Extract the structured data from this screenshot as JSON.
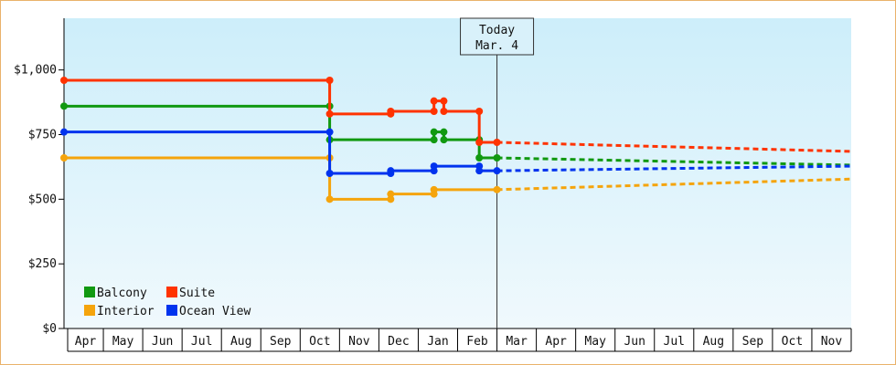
{
  "chart_data": {
    "type": "line",
    "title": "",
    "xlabel": "",
    "ylabel": "",
    "ylim": [
      0,
      1200
    ],
    "y_ticks": [
      {
        "value": 0,
        "label": "$0"
      },
      {
        "value": 250,
        "label": "$250"
      },
      {
        "value": 500,
        "label": "$500"
      },
      {
        "value": 750,
        "label": "$750"
      },
      {
        "value": 1000,
        "label": "$1,000"
      }
    ],
    "x_start": 0,
    "x_end": 20,
    "x_months": [
      "Apr",
      "May",
      "Jun",
      "Jul",
      "Aug",
      "Sep",
      "Oct",
      "Nov",
      "Dec",
      "Jan",
      "Feb",
      "Mar",
      "Apr",
      "May",
      "Jun",
      "Jul",
      "Aug",
      "Sep",
      "Oct",
      "Nov"
    ],
    "today": {
      "x": 11,
      "line1": "Today",
      "line2": "Mar. 4"
    },
    "legend_position": "bottom-left",
    "background": {
      "top": "#cdeefa",
      "bottom": "#f0f9fd"
    },
    "series": [
      {
        "name": "Balcony",
        "color": "#119911",
        "points": [
          [
            0,
            860
          ],
          [
            6.75,
            860
          ],
          [
            6.75,
            730
          ],
          [
            9.4,
            730
          ],
          [
            9.4,
            760
          ],
          [
            9.65,
            760
          ],
          [
            9.65,
            730
          ],
          [
            10.55,
            730
          ],
          [
            10.55,
            660
          ],
          [
            11,
            660
          ]
        ],
        "forecast": [
          [
            11,
            660
          ],
          [
            20,
            632
          ]
        ]
      },
      {
        "name": "Suite",
        "color": "#ff3300",
        "points": [
          [
            0,
            960
          ],
          [
            6.75,
            960
          ],
          [
            6.75,
            830
          ],
          [
            8.3,
            830
          ],
          [
            8.3,
            840
          ],
          [
            9.4,
            840
          ],
          [
            9.4,
            880
          ],
          [
            9.65,
            880
          ],
          [
            9.65,
            840
          ],
          [
            10.55,
            840
          ],
          [
            10.55,
            720
          ],
          [
            11,
            720
          ]
        ],
        "forecast": [
          [
            11,
            720
          ],
          [
            20,
            685
          ]
        ]
      },
      {
        "name": "Interior",
        "color": "#f5a40c",
        "points": [
          [
            0,
            660
          ],
          [
            6.75,
            660
          ],
          [
            6.75,
            500
          ],
          [
            8.3,
            500
          ],
          [
            8.3,
            520
          ],
          [
            9.4,
            520
          ],
          [
            9.4,
            537
          ],
          [
            11,
            537
          ]
        ],
        "forecast": [
          [
            11,
            537
          ],
          [
            20,
            578
          ]
        ]
      },
      {
        "name": "Ocean View",
        "color": "#0033ee",
        "points": [
          [
            0,
            760
          ],
          [
            6.75,
            760
          ],
          [
            6.75,
            600
          ],
          [
            8.3,
            600
          ],
          [
            8.3,
            610
          ],
          [
            9.4,
            610
          ],
          [
            9.4,
            628
          ],
          [
            10.55,
            628
          ],
          [
            10.55,
            610
          ],
          [
            11,
            610
          ]
        ],
        "forecast": [
          [
            11,
            610
          ],
          [
            20,
            628
          ]
        ]
      }
    ],
    "legend": [
      {
        "name": "Balcony",
        "color": "#119911"
      },
      {
        "name": "Suite",
        "color": "#ff3300"
      },
      {
        "name": "Interior",
        "color": "#f5a40c"
      },
      {
        "name": "Ocean View",
        "color": "#0033ee"
      }
    ]
  }
}
